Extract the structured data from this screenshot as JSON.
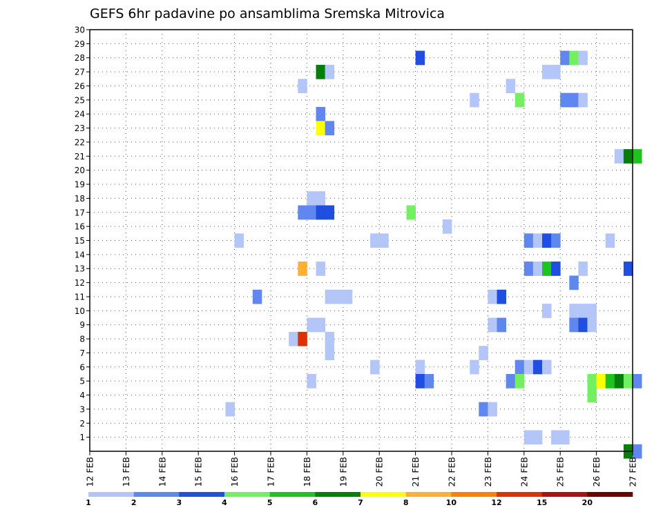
{
  "chart_data": {
    "type": "heatmap",
    "title": "GEFS 6hr padavine po ansamblima Sremska Mitrovica",
    "xlabel": "",
    "ylabel": "",
    "x_ticks": [
      "12 FEB",
      "13 FEB",
      "14 FEB",
      "15 FEB",
      "16 FEB",
      "17 FEB",
      "18 FEB",
      "19 FEB",
      "20 FEB",
      "21 FEB",
      "22 FEB",
      "23 FEB",
      "24 FEB",
      "25 FEB",
      "26 FEB",
      "27 FEB"
    ],
    "x_range_days": [
      12,
      27
    ],
    "y_range": [
      0,
      30
    ],
    "y_ticks": [
      1,
      2,
      3,
      4,
      5,
      6,
      7,
      8,
      9,
      10,
      11,
      12,
      13,
      14,
      15,
      16,
      17,
      18,
      19,
      20,
      21,
      22,
      23,
      24,
      25,
      26,
      27,
      28,
      29,
      30
    ],
    "grid": true,
    "time_step_hours": 6,
    "legend_position": "bottom",
    "legend": {
      "labels": [
        "1",
        "2",
        "3",
        "4",
        "5",
        "6",
        "7",
        "8",
        "10",
        "12",
        "15",
        "20"
      ],
      "colors": [
        "#b4c5f7",
        "#5f87ef",
        "#1f4ee0",
        "#72f061",
        "#1ec41e",
        "#057e0a",
        "#ffff00",
        "#ffb030",
        "#ff8000",
        "#e03000",
        "#b01010",
        "#6e0000"
      ]
    },
    "data_note": "cells: [member, day, hour, level]; level indexes legend.colors",
    "cells": [
      [
        28,
        21,
        0,
        3
      ],
      [
        28,
        25,
        0,
        2
      ],
      [
        28,
        25,
        6,
        4
      ],
      [
        28,
        25,
        12,
        1
      ],
      [
        27,
        18,
        6,
        6
      ],
      [
        27,
        18,
        12,
        1
      ],
      [
        27,
        24,
        12,
        1
      ],
      [
        27,
        24,
        18,
        1
      ],
      [
        26,
        17,
        18,
        1
      ],
      [
        26,
        23,
        12,
        1
      ],
      [
        25,
        22,
        12,
        1
      ],
      [
        25,
        23,
        18,
        4
      ],
      [
        25,
        25,
        0,
        2
      ],
      [
        25,
        25,
        6,
        2
      ],
      [
        25,
        25,
        12,
        1
      ],
      [
        24,
        18,
        6,
        2
      ],
      [
        23,
        18,
        6,
        7
      ],
      [
        23,
        18,
        12,
        2
      ],
      [
        21,
        26,
        12,
        1
      ],
      [
        21,
        26,
        18,
        6
      ],
      [
        21,
        27,
        0,
        5
      ],
      [
        18,
        18,
        0,
        1
      ],
      [
        18,
        18,
        6,
        1
      ],
      [
        17,
        17,
        18,
        2
      ],
      [
        17,
        18,
        0,
        2
      ],
      [
        17,
        18,
        6,
        3
      ],
      [
        17,
        18,
        12,
        3
      ],
      [
        17,
        20,
        18,
        4
      ],
      [
        16,
        21,
        18,
        1
      ],
      [
        15,
        16,
        0,
        1
      ],
      [
        15,
        19,
        18,
        1
      ],
      [
        15,
        20,
        0,
        1
      ],
      [
        15,
        24,
        0,
        2
      ],
      [
        15,
        24,
        6,
        1
      ],
      [
        15,
        24,
        12,
        3
      ],
      [
        15,
        24,
        18,
        2
      ],
      [
        15,
        26,
        6,
        1
      ],
      [
        13,
        17,
        18,
        8
      ],
      [
        13,
        18,
        6,
        1
      ],
      [
        13,
        24,
        0,
        2
      ],
      [
        13,
        24,
        6,
        1
      ],
      [
        13,
        24,
        12,
        5
      ],
      [
        13,
        24,
        18,
        3
      ],
      [
        13,
        25,
        12,
        1
      ],
      [
        13,
        26,
        18,
        3
      ],
      [
        12,
        25,
        6,
        2
      ],
      [
        11,
        16,
        12,
        2
      ],
      [
        11,
        18,
        12,
        1
      ],
      [
        11,
        18,
        18,
        1
      ],
      [
        11,
        19,
        0,
        1
      ],
      [
        11,
        23,
        0,
        1
      ],
      [
        11,
        23,
        6,
        3
      ],
      [
        10,
        24,
        12,
        1
      ],
      [
        10,
        25,
        6,
        1
      ],
      [
        10,
        25,
        12,
        1
      ],
      [
        10,
        25,
        18,
        1
      ],
      [
        9,
        18,
        0,
        1
      ],
      [
        9,
        18,
        6,
        1
      ],
      [
        9,
        23,
        0,
        1
      ],
      [
        9,
        23,
        6,
        2
      ],
      [
        9,
        25,
        6,
        2
      ],
      [
        9,
        25,
        12,
        3
      ],
      [
        9,
        25,
        18,
        1
      ],
      [
        8,
        17,
        12,
        1
      ],
      [
        8,
        17,
        18,
        10
      ],
      [
        8,
        18,
        12,
        1
      ],
      [
        7,
        18,
        12,
        1
      ],
      [
        7,
        22,
        18,
        1
      ],
      [
        6,
        19,
        18,
        1
      ],
      [
        6,
        21,
        0,
        1
      ],
      [
        6,
        22,
        12,
        1
      ],
      [
        6,
        23,
        18,
        2
      ],
      [
        6,
        24,
        0,
        1
      ],
      [
        6,
        24,
        6,
        3
      ],
      [
        6,
        24,
        12,
        1
      ],
      [
        5,
        18,
        0,
        1
      ],
      [
        5,
        21,
        0,
        3
      ],
      [
        5,
        21,
        6,
        2
      ],
      [
        5,
        23,
        12,
        2
      ],
      [
        5,
        23,
        18,
        4
      ],
      [
        5,
        25,
        18,
        4
      ],
      [
        5,
        26,
        0,
        7
      ],
      [
        5,
        26,
        6,
        5
      ],
      [
        5,
        26,
        12,
        6
      ],
      [
        5,
        26,
        18,
        4
      ],
      [
        5,
        27,
        0,
        2
      ],
      [
        4,
        25,
        18,
        4
      ],
      [
        3,
        15,
        18,
        1
      ],
      [
        3,
        22,
        18,
        2
      ],
      [
        3,
        23,
        0,
        1
      ],
      [
        1,
        24,
        0,
        1
      ],
      [
        1,
        24,
        6,
        1
      ],
      [
        1,
        24,
        18,
        1
      ],
      [
        1,
        25,
        0,
        1
      ],
      [
        0,
        26,
        18,
        6
      ],
      [
        0,
        27,
        0,
        2
      ]
    ]
  }
}
